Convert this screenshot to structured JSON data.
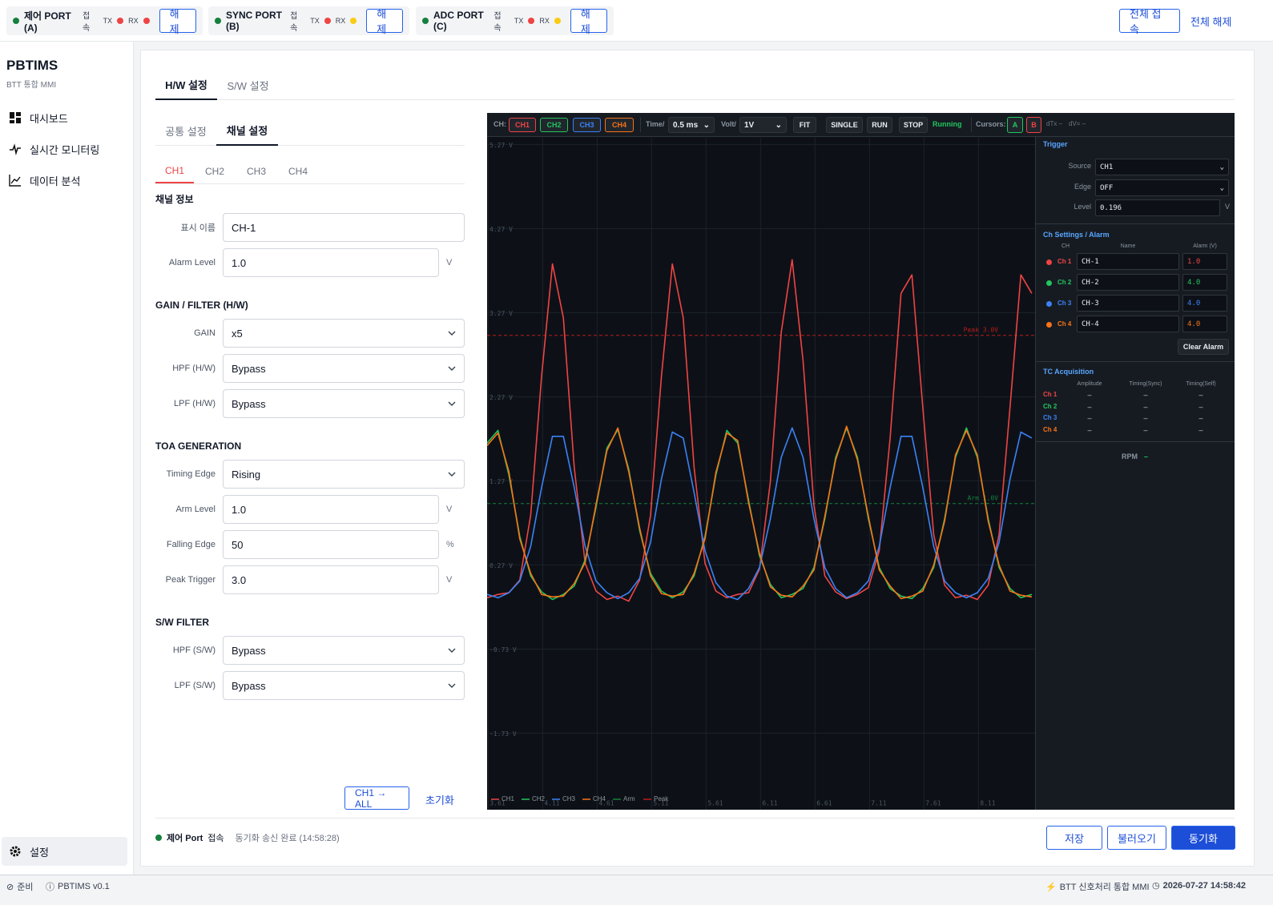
{
  "top_bar": {
    "ports": [
      {
        "name": "제어 PORT (A)",
        "status": "접속",
        "tx": "TX",
        "rx": "RX",
        "tx_color": "#ef4444",
        "rx_color": "#ef4444",
        "button": "해제"
      },
      {
        "name": "SYNC PORT (B)",
        "status": "접속",
        "tx": "TX",
        "rx": "RX",
        "tx_color": "#ef4444",
        "rx_color": "#facc15",
        "button": "해제"
      },
      {
        "name": "ADC PORT (C)",
        "status": "접속",
        "tx": "TX",
        "rx": "RX",
        "tx_color": "#ef4444",
        "rx_color": "#facc15",
        "button": "해제"
      }
    ],
    "connect_all": "전체 접속",
    "disconnect_all": "전체 해제"
  },
  "sidebar": {
    "title": "PBTIMS",
    "subtitle": "BTT 통합 MMI",
    "menu": [
      "대시보드",
      "실시간 모니터링",
      "데이터 분석"
    ],
    "settings": "설정"
  },
  "tabs": {
    "main": [
      "H/W 설정",
      "S/W 설정"
    ],
    "sub": [
      "공통 설정",
      "채널 설정"
    ],
    "channels": [
      "CH1",
      "CH2",
      "CH3",
      "CH4"
    ]
  },
  "form": [
    {
      "title": "채널 정보",
      "fields": [
        {
          "label": "표시 이름",
          "value": "CH-1"
        },
        {
          "label": "Alarm Level",
          "value": "1.0",
          "unit": "V"
        }
      ]
    },
    {
      "title": "GAIN / FILTER (H/W)",
      "fields": [
        {
          "label": "GAIN",
          "value": "x5",
          "control": "select"
        },
        {
          "label": "HPF (H/W)",
          "value": "Bypass",
          "control": "select"
        },
        {
          "label": "LPF (H/W)",
          "value": "Bypass",
          "control": "select"
        }
      ]
    },
    {
      "title": "TOA GENERATION",
      "fields": [
        {
          "label": "Timing Edge",
          "value": "Rising",
          "control": "select"
        },
        {
          "label": "Arm Level",
          "value": "1.0",
          "unit": "V"
        },
        {
          "label": "Falling Edge",
          "value": "50",
          "unit": "%"
        },
        {
          "label": "Peak Trigger",
          "value": "3.0",
          "unit": "V"
        }
      ]
    },
    {
      "title": "S/W FILTER",
      "fields": [
        {
          "label": "HPF (S/W)",
          "value": "Bypass",
          "control": "select"
        },
        {
          "label": "LPF (S/W)",
          "value": "Bypass",
          "control": "select"
        }
      ]
    }
  ],
  "form_buttons": {
    "copy": "CH1 → ALL",
    "reset": "초기화"
  },
  "status": {
    "port": "제어 Port",
    "state": "접속",
    "message": "동기화 송신 완료 (14:58:28)"
  },
  "actions": {
    "save": "저장",
    "load": "불러오기",
    "sync": "동기화"
  },
  "footer": {
    "ready": "준비",
    "version": "PBTIMS  v0.1",
    "app": "BTT 신호처리 통합 MMI",
    "datetime": "2026-07-27  14:58:42"
  },
  "scope_toolbar": {
    "ch_label": "CH:",
    "time_label": "Time/",
    "time_value": "0.5 ms",
    "volt_label": "Volt/",
    "volt_value": "1V",
    "fit": "FIT",
    "single": "SINGLE",
    "run": "RUN",
    "stop": "STOP",
    "state": "Running",
    "cursors_label": "Cursors:",
    "cursor_a": "A",
    "cursor_b": "B",
    "dtx": "dTx –",
    "dv": "dV= –"
  },
  "trigger": {
    "title": "Trigger",
    "source_label": "Source",
    "source": "CH1",
    "edge_label": "Edge",
    "edge": "OFF",
    "level_label": "Level",
    "level": "0.196",
    "level_unit": "V"
  },
  "alarm": {
    "title": "Ch Settings / Alarm",
    "headers": [
      "CH",
      "Name",
      "Alarm (V)"
    ],
    "rows": [
      {
        "ch": "Ch 1",
        "name": "CH-1",
        "alarm": "1.0"
      },
      {
        "ch": "Ch 2",
        "name": "CH-2",
        "alarm": "4.0"
      },
      {
        "ch": "Ch 3",
        "name": "CH-3",
        "alarm": "4.0"
      },
      {
        "ch": "Ch 4",
        "name": "CH-4",
        "alarm": "4.0"
      }
    ],
    "clear": "Clear Alarm"
  },
  "tc": {
    "title": "TC Acquisition",
    "headers": [
      "Amplitude",
      "Timing(Sync)",
      "Timing(Self)"
    ],
    "rows": [
      {
        "ch": "Ch 1",
        "values": [
          "–",
          "–",
          "–"
        ]
      },
      {
        "ch": "Ch 2",
        "values": [
          "–",
          "–",
          "–"
        ]
      },
      {
        "ch": "Ch 3",
        "values": [
          "–",
          "–",
          "–"
        ]
      },
      {
        "ch": "Ch 4",
        "values": [
          "–",
          "–",
          "–"
        ]
      }
    ]
  },
  "rpm": {
    "label": "RPM",
    "value": "–"
  },
  "chart_data": {
    "type": "line",
    "x": [
      3.6,
      3.7,
      3.8,
      3.9,
      4.0,
      4.1,
      4.2,
      4.3,
      4.4,
      4.5,
      4.6,
      4.7,
      4.8,
      4.9,
      5.0,
      5.1,
      5.2,
      5.3,
      5.4,
      5.5,
      5.6,
      5.7,
      5.8,
      5.9,
      6.0,
      6.1,
      6.2,
      6.3,
      6.4,
      6.5,
      6.6,
      6.7,
      6.8,
      6.9,
      7.0,
      7.1,
      7.2,
      7.3,
      7.4,
      7.5,
      7.6,
      7.7,
      7.8,
      7.9,
      8.0,
      8.1,
      8.2,
      8.3,
      8.4,
      8.5,
      8.6
    ],
    "series": [
      {
        "name": "CH1",
        "color": "#ef4444",
        "values": [
          -0.12,
          -0.08,
          -0.06,
          0.09,
          0.86,
          2.51,
          3.85,
          3.21,
          1.43,
          0.29,
          -0.04,
          -0.14,
          -0.1,
          -0.16,
          0.09,
          0.86,
          2.51,
          3.85,
          3.21,
          1.43,
          0.29,
          -0.04,
          -0.12,
          -0.08,
          -0.06,
          0.22,
          1.26,
          3.04,
          3.9,
          2.7,
          0.98,
          0.14,
          -0.05,
          -0.13,
          -0.08,
          0.0,
          0.44,
          1.78,
          3.5,
          3.72,
          2.14,
          0.63,
          0.03,
          -0.12,
          -0.09,
          -0.14,
          0.03,
          0.63,
          2.14,
          3.72,
          3.5
        ]
      },
      {
        "name": "CH2",
        "color": "#22c55e",
        "values": [
          1.72,
          1.87,
          1.34,
          0.61,
          0.14,
          -0.05,
          -0.14,
          -0.08,
          0.02,
          0.33,
          0.96,
          1.66,
          1.88,
          1.41,
          0.68,
          0.17,
          -0.04,
          -0.12,
          -0.05,
          0.14,
          0.61,
          1.34,
          1.87,
          1.72,
          1.04,
          0.38,
          0.04,
          -0.12,
          -0.08,
          -0.01,
          0.24,
          0.82,
          1.55,
          1.9,
          1.55,
          0.82,
          0.24,
          -0.01,
          -0.1,
          -0.13,
          -0.01,
          0.24,
          0.82,
          1.55,
          1.9,
          1.55,
          0.82,
          0.24,
          -0.01,
          -0.12,
          -0.08
        ]
      },
      {
        "name": "CH3",
        "color": "#3b82f6",
        "values": [
          -0.08,
          -0.12,
          -0.06,
          0.08,
          0.49,
          1.19,
          1.8,
          1.8,
          1.19,
          0.49,
          0.08,
          -0.06,
          -0.13,
          -0.06,
          0.11,
          0.54,
          1.29,
          1.85,
          1.78,
          1.13,
          0.44,
          0.06,
          -0.1,
          -0.14,
          -0.01,
          0.24,
          0.82,
          1.55,
          1.9,
          1.55,
          0.82,
          0.24,
          -0.01,
          -0.12,
          -0.06,
          0.08,
          0.49,
          1.19,
          1.8,
          1.8,
          1.19,
          0.49,
          0.08,
          -0.06,
          -0.12,
          -0.06,
          0.11,
          0.54,
          1.29,
          1.85,
          1.78
        ]
      },
      {
        "name": "CH4",
        "color": "#f97316",
        "values": [
          1.69,
          1.84,
          1.38,
          0.58,
          0.17,
          -0.08,
          -0.11,
          -0.1,
          0.05,
          0.3,
          0.99,
          1.63,
          1.9,
          1.38,
          0.71,
          0.14,
          -0.07,
          -0.1,
          -0.08,
          0.17,
          0.58,
          1.37,
          1.84,
          1.75,
          1.01,
          0.41,
          0.01,
          -0.09,
          -0.11,
          0.02,
          0.21,
          0.85,
          1.52,
          1.92,
          1.52,
          0.85,
          0.21,
          0.02,
          -0.13,
          -0.1,
          -0.04,
          0.27,
          0.79,
          1.58,
          1.87,
          1.58,
          0.79,
          0.27,
          -0.04,
          -0.09,
          -0.11
        ]
      }
    ],
    "reference_lines": [
      {
        "name": "Arm",
        "value": 1.0,
        "label": "Arm 1.0V",
        "color": "#15803d"
      },
      {
        "name": "Peak",
        "value": 3.0,
        "label": "Peak 3.0V",
        "color": "#b91c1c"
      }
    ],
    "xlim": [
      3.6,
      8.63
    ],
    "ylim": [
      -2.64,
      5.35
    ],
    "xticks": [
      3.61,
      4.11,
      4.61,
      5.11,
      5.61,
      6.11,
      6.61,
      7.11,
      7.61,
      8.11
    ],
    "yticks": [
      {
        "value": 5.27,
        "label": "5.27 V"
      },
      {
        "value": 4.27,
        "label": "4.27 V"
      },
      {
        "value": 3.27,
        "label": "3.27 V"
      },
      {
        "value": 2.27,
        "label": "2.27 V"
      },
      {
        "value": 1.27,
        "label": "1.27 V"
      },
      {
        "value": 0.27,
        "label": "0.27 V"
      },
      {
        "value": -0.73,
        "label": "-0.73 V"
      },
      {
        "value": -1.73,
        "label": "-1.73 V"
      }
    ],
    "grid": true,
    "legend": "bottom-left"
  }
}
